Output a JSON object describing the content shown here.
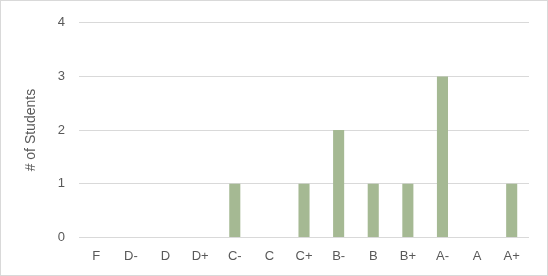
{
  "chart_data": {
    "type": "bar",
    "ylabel": "# of Students",
    "categories": [
      "F",
      "D-",
      "D",
      "D+",
      "C-",
      "C",
      "C+",
      "B-",
      "B",
      "B+",
      "A-",
      "A",
      "A+"
    ],
    "values": [
      0,
      0,
      0,
      0,
      1,
      0,
      1,
      2,
      1,
      1,
      3,
      0,
      1
    ],
    "color": "#a5b993",
    "ylim": [
      0,
      4
    ],
    "yticks": [
      0,
      1,
      2,
      3,
      4
    ],
    "grid": true
  }
}
